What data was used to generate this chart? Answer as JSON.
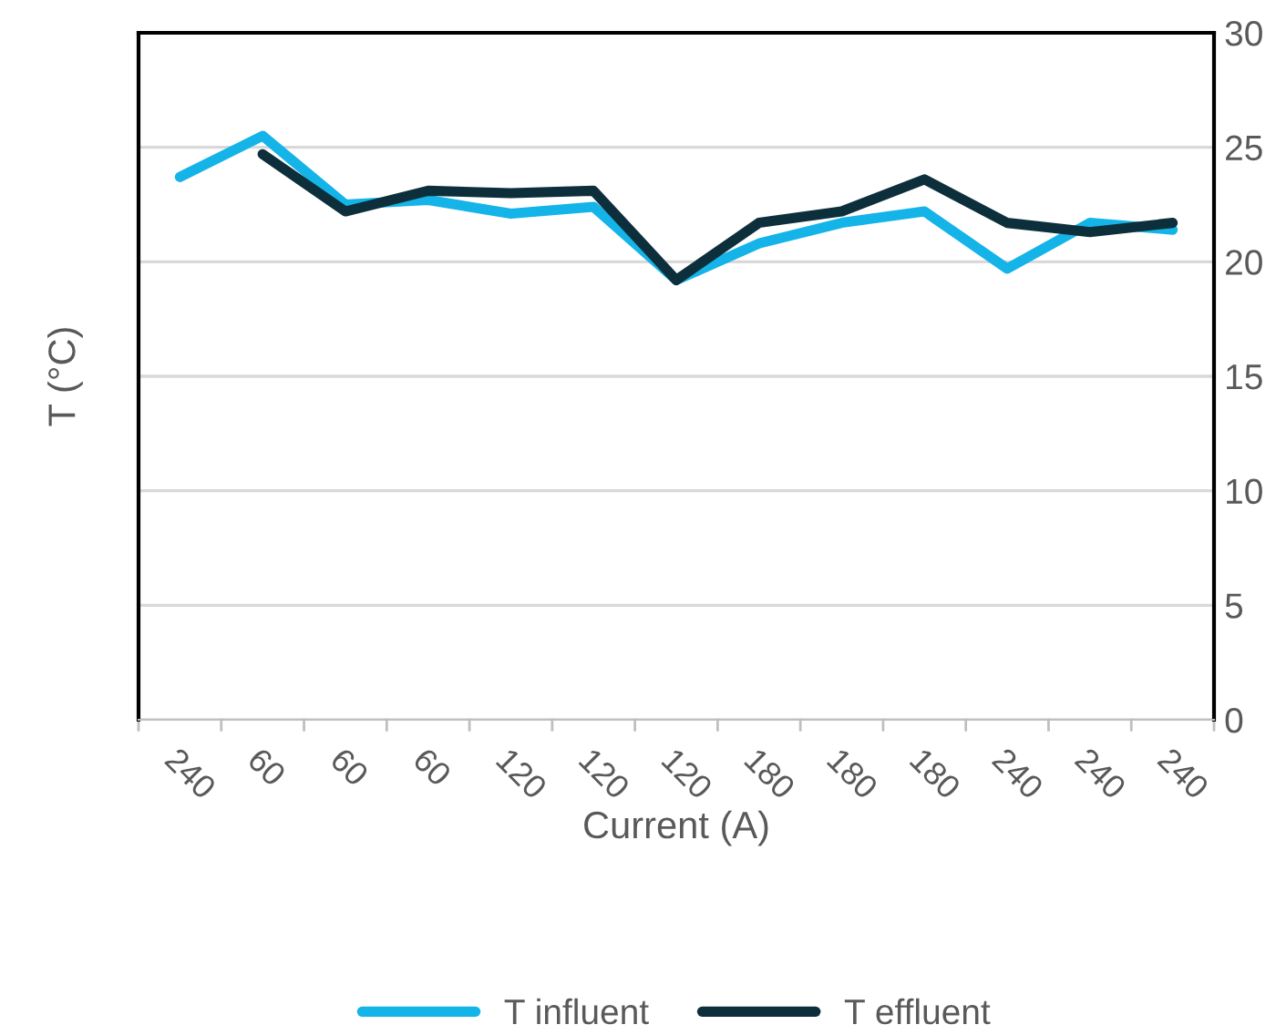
{
  "chart_data": {
    "type": "line",
    "xlabel": "Current (A)",
    "ylabel": "T (°C)",
    "categories": [
      "240",
      "60",
      "60",
      "60",
      "120",
      "120",
      "120",
      "180",
      "180",
      "180",
      "240",
      "240",
      "240"
    ],
    "series": [
      {
        "name": "T influent",
        "color": "#14b4e8",
        "values": [
          23.7,
          25.5,
          22.5,
          22.7,
          22.1,
          22.4,
          19.2,
          20.8,
          21.7,
          22.2,
          19.7,
          21.7,
          21.4
        ]
      },
      {
        "name": "T effluent",
        "color": "#0d2f3c",
        "values": [
          null,
          24.7,
          22.2,
          23.1,
          23.0,
          23.1,
          19.2,
          21.7,
          22.2,
          23.6,
          21.7,
          21.3,
          21.7
        ]
      }
    ],
    "ylim": [
      0,
      30
    ],
    "yticks": [
      0,
      5,
      10,
      15,
      20,
      25,
      30
    ],
    "grid": "y",
    "legend": "bottom",
    "marker": "none",
    "line_style": "solid"
  }
}
